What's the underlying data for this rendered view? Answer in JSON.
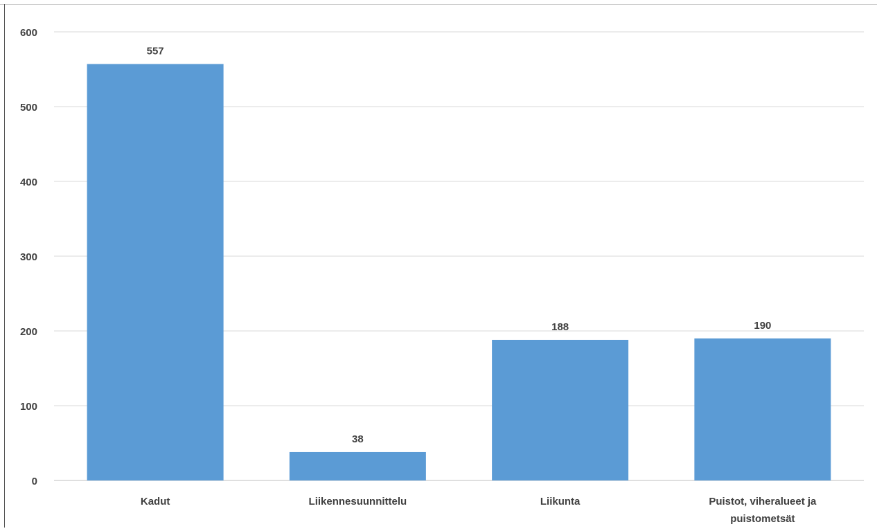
{
  "chart_data": {
    "type": "bar",
    "categories": [
      "Kadut",
      "Liikennesuunnittelu",
      "Liikunta",
      "Puistot, viheralueet ja puistometsät"
    ],
    "category_lines": [
      [
        "Kadut"
      ],
      [
        "Liikennesuunnittelu"
      ],
      [
        "Liikunta"
      ],
      [
        "Puistot, viheralueet ja",
        "puistometsät"
      ]
    ],
    "values": [
      557,
      38,
      188,
      190
    ],
    "title": "",
    "xlabel": "",
    "ylabel": "",
    "ylim": [
      0,
      600
    ],
    "yticks": [
      0,
      100,
      200,
      300,
      400,
      500,
      600
    ],
    "grid": true,
    "legend": "none",
    "data_labels": true
  },
  "colors": {
    "bar": "#5b9bd5",
    "grid": "#d9d9d9",
    "axis": "#bfbfbf",
    "text": "#404040"
  }
}
